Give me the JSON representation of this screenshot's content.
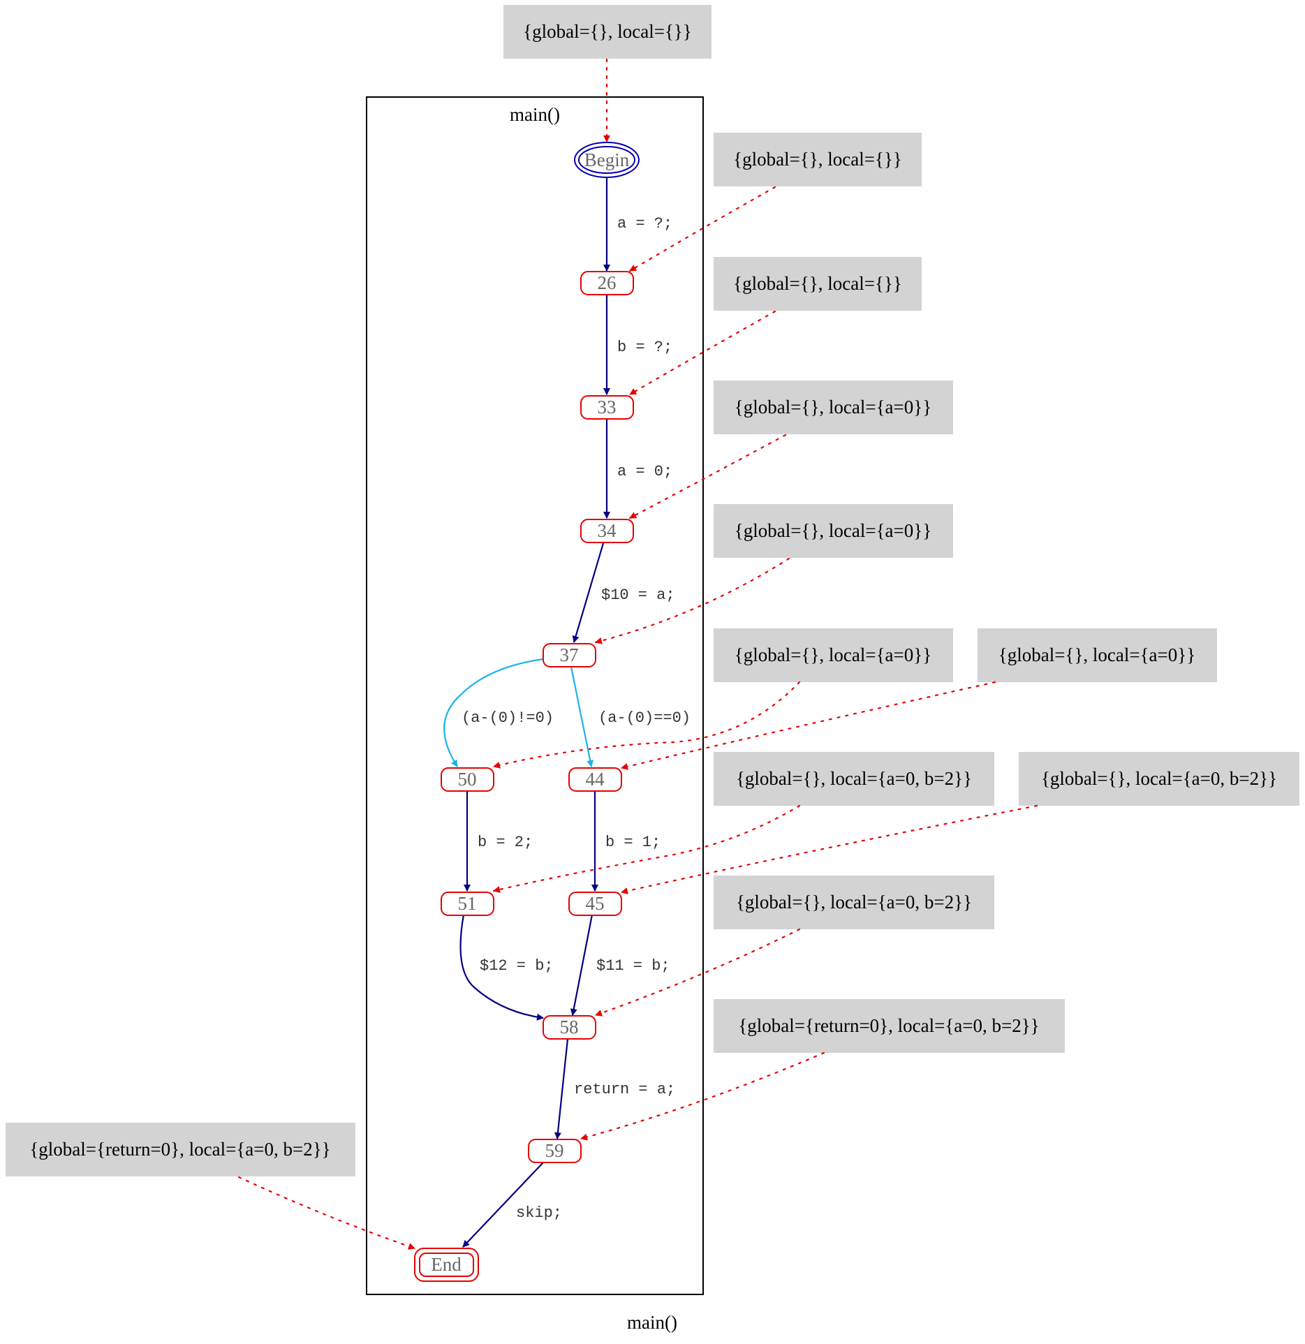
{
  "graph": {
    "label": "main()"
  },
  "cluster": {
    "label": "main()"
  },
  "colors": {
    "node_border": "#e60000",
    "edge_default": "#000080",
    "edge_branch": "#1ab4e6",
    "state_link": "#e60000",
    "state_fill": "#d3d3d3",
    "begin_border": "#0000b0"
  },
  "nodes": {
    "begin": "Begin",
    "n26": "26",
    "n33": "33",
    "n34": "34",
    "n37": "37",
    "n50": "50",
    "n44": "44",
    "n51": "51",
    "n45": "45",
    "n58": "58",
    "n59": "59",
    "end": "End"
  },
  "edges": {
    "begin_26": "a = ?;",
    "n26_33": "b = ?;",
    "n33_34": "a = 0;",
    "n34_37": "$10 = a;",
    "n37_50": "(a-(0)!=0)",
    "n37_44": "(a-(0)==0)",
    "n50_51": "b = 2;",
    "n44_45": "b = 1;",
    "n51_58": "$12 = b;",
    "n45_58": "$11 = b;",
    "n58_59": "return = a;",
    "n59_end": "skip;"
  },
  "states": {
    "s_begin": "{global={}, local={}}",
    "s_26": "{global={}, local={}}",
    "s_33": "{global={}, local={}}",
    "s_34": "{global={}, local={a=0}}",
    "s_37": "{global={}, local={a=0}}",
    "s_50": "{global={}, local={a=0}}",
    "s_44": "{global={}, local={a=0}}",
    "s_51": "{global={}, local={a=0, b=2}}",
    "s_45": "{global={}, local={a=0, b=2}}",
    "s_58": "{global={}, local={a=0, b=2}}",
    "s_59": "{global={return=0}, local={a=0, b=2}}",
    "s_end": "{global={return=0}, local={a=0, b=2}}"
  }
}
